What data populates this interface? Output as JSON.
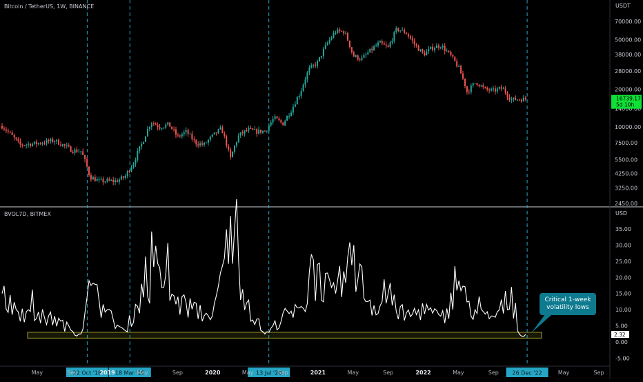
{
  "price_panel": {
    "title": "Bitcoin / TetherUS, 1W, BINANCE",
    "currency": "USDT",
    "current_price": "16739.17",
    "countdown": "5d 10h",
    "up_color": "#26a69a",
    "down_color": "#ef5350"
  },
  "vol_panel": {
    "title": "BVOL7D, BITMEX",
    "currency": "USD",
    "current_value": "2.32",
    "zone_color": "#c9c43a"
  },
  "annotation": {
    "line1": "Critical 1-week",
    "line2": "volatility lows",
    "color": "#0d7a8f"
  },
  "markers": [
    {
      "label": "22 Oct '18"
    },
    {
      "label": "18 Mar '19"
    },
    {
      "label": "13 Jul '20"
    },
    {
      "label": "26 Dec '22"
    }
  ],
  "chart_data": [
    {
      "type": "candlestick",
      "title": "Bitcoin / TetherUS, 1W, BINANCE",
      "y_scale": "log",
      "y_ticks": [
        70000,
        50000,
        38000,
        28000,
        20000,
        14000,
        10000,
        7500,
        5500,
        4250,
        3250,
        2450
      ],
      "y_tick_labels": [
        "70000.00",
        "50000.00",
        "38000.00",
        "28000.00",
        "20000.00",
        "14000.00",
        "10000.00",
        "7500.00",
        "5500.00",
        "4250.00",
        "3250.00",
        "2450.00"
      ],
      "x_tick_labels": [
        "May",
        "Sep",
        "2019",
        "May",
        "Sep",
        "2020",
        "May",
        "Sep",
        "2021",
        "May",
        "Sep",
        "2022",
        "May",
        "Sep",
        "May",
        "Sep"
      ],
      "x_tick_dates": [
        "2018-05",
        "2018-09",
        "2019-01",
        "2019-05",
        "2019-09",
        "2020-01",
        "2020-05",
        "2020-09",
        "2021-01",
        "2021-05",
        "2021-09",
        "2022-01",
        "2022-05",
        "2022-09",
        "2023-05",
        "2023-09"
      ],
      "approx_weekly_close": [
        [
          "2018-01",
          10200
        ],
        [
          "2018-03",
          7200
        ],
        [
          "2018-05",
          7400
        ],
        [
          "2018-07",
          7800
        ],
        [
          "2018-09",
          6500
        ],
        [
          "2018-10",
          6400
        ],
        [
          "2018-11",
          4000
        ],
        [
          "2018-12",
          3700
        ],
        [
          "2019-02",
          3700
        ],
        [
          "2019-03",
          4000
        ],
        [
          "2019-04",
          5200
        ],
        [
          "2019-05",
          7500
        ],
        [
          "2019-06",
          11000
        ],
        [
          "2019-07",
          10000
        ],
        [
          "2019-08",
          10500
        ],
        [
          "2019-09",
          8300
        ],
        [
          "2019-10",
          9200
        ],
        [
          "2019-11",
          7500
        ],
        [
          "2019-12",
          7200
        ],
        [
          "2020-01",
          8500
        ],
        [
          "2020-02",
          9700
        ],
        [
          "2020-03",
          5500
        ],
        [
          "2020-04",
          8600
        ],
        [
          "2020-05",
          9500
        ],
        [
          "2020-06",
          9200
        ],
        [
          "2020-07",
          9300
        ],
        [
          "2020-08",
          11800
        ],
        [
          "2020-09",
          10600
        ],
        [
          "2020-10",
          13800
        ],
        [
          "2020-11",
          19000
        ],
        [
          "2020-12",
          29000
        ],
        [
          "2021-01",
          33000
        ],
        [
          "2021-02",
          46000
        ],
        [
          "2021-03",
          58000
        ],
        [
          "2021-04",
          58000
        ],
        [
          "2021-05",
          37000
        ],
        [
          "2021-06",
          35000
        ],
        [
          "2021-07",
          41000
        ],
        [
          "2021-08",
          47000
        ],
        [
          "2021-09",
          43000
        ],
        [
          "2021-10",
          61000
        ],
        [
          "2021-11",
          57000
        ],
        [
          "2021-12",
          46000
        ],
        [
          "2022-01",
          38000
        ],
        [
          "2022-02",
          43000
        ],
        [
          "2022-03",
          45000
        ],
        [
          "2022-04",
          38000
        ],
        [
          "2022-05",
          30000
        ],
        [
          "2022-06",
          19000
        ],
        [
          "2022-07",
          23000
        ],
        [
          "2022-08",
          20000
        ],
        [
          "2022-09",
          19500
        ],
        [
          "2022-10",
          20500
        ],
        [
          "2022-11",
          16500
        ],
        [
          "2022-12",
          16739
        ]
      ],
      "current_price": 16739.17
    },
    {
      "type": "line",
      "title": "BVOL7D, BITMEX",
      "ylabel": "USD",
      "y_ticks": [
        35,
        30,
        25,
        20,
        15,
        10,
        5,
        0,
        -5
      ],
      "y_tick_labels": [
        "35.00",
        "30.00",
        "25.00",
        "20.00",
        "15.00",
        "10.00",
        "5.00",
        "0.00",
        "-5.00"
      ],
      "ylim": [
        -6,
        38
      ],
      "low_zone": [
        1.2,
        3.0
      ],
      "approx_values": [
        [
          "2018-01",
          15
        ],
        [
          "2018-04",
          10
        ],
        [
          "2018-07",
          8
        ],
        [
          "2018-10",
          2.5
        ],
        [
          "2018-11",
          19
        ],
        [
          "2019-01",
          10
        ],
        [
          "2019-03",
          3.5
        ],
        [
          "2019-05",
          18
        ],
        [
          "2019-07",
          23
        ],
        [
          "2019-09",
          14
        ],
        [
          "2019-11",
          12
        ],
        [
          "2020-01",
          8
        ],
        [
          "2020-03",
          39
        ],
        [
          "2020-05",
          13
        ],
        [
          "2020-07",
          2.5
        ],
        [
          "2020-09",
          9
        ],
        [
          "2020-11",
          11
        ],
        [
          "2021-01",
          24
        ],
        [
          "2021-03",
          15
        ],
        [
          "2021-05",
          30
        ],
        [
          "2021-07",
          13
        ],
        [
          "2021-09",
          15
        ],
        [
          "2021-11",
          9
        ],
        [
          "2022-01",
          12
        ],
        [
          "2022-03",
          8
        ],
        [
          "2022-05",
          19
        ],
        [
          "2022-07",
          10
        ],
        [
          "2022-09",
          8
        ],
        [
          "2022-11",
          17
        ],
        [
          "2022-12",
          2.32
        ]
      ],
      "current_value": 2.32,
      "annotation": "Critical 1-week volatility lows",
      "vertical_markers": [
        "2018-10-22",
        "2019-03-18",
        "2020-07-13",
        "2022-12-26"
      ]
    }
  ]
}
